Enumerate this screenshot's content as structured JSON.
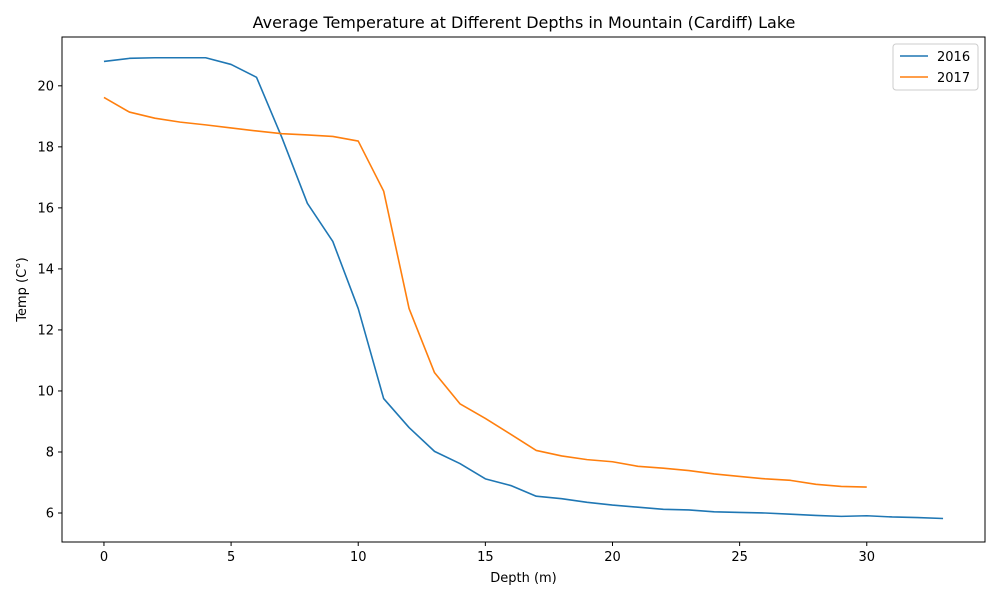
{
  "chart_data": {
    "type": "line",
    "title": "Average Temperature at Different Depths in Mountain (Cardiff) Lake",
    "xlabel": "Depth (m)",
    "ylabel": "Temp (C°)",
    "xlim": [
      -1.65,
      34.65
    ],
    "ylim": [
      5.05,
      21.6
    ],
    "xticks": [
      0,
      5,
      10,
      15,
      20,
      25,
      30
    ],
    "yticks": [
      6,
      8,
      10,
      12,
      14,
      16,
      18,
      20
    ],
    "grid": false,
    "legend_position": "top-right",
    "series": [
      {
        "name": "2016",
        "color": "#1f77b4",
        "x": [
          0,
          1,
          2,
          3,
          4,
          5,
          6,
          7,
          8,
          9,
          10,
          11,
          12,
          13,
          14,
          15,
          16,
          17,
          18,
          19,
          20,
          21,
          22,
          23,
          24,
          25,
          26,
          27,
          28,
          29,
          30,
          31,
          32,
          33
        ],
        "y": [
          20.8,
          20.9,
          20.92,
          20.92,
          20.92,
          20.7,
          20.28,
          18.3,
          16.15,
          14.9,
          12.7,
          9.75,
          8.8,
          8.02,
          7.62,
          7.12,
          6.9,
          6.55,
          6.47,
          6.35,
          6.26,
          6.19,
          6.12,
          6.1,
          6.04,
          6.02,
          6.0,
          5.96,
          5.92,
          5.89,
          5.91,
          5.87,
          5.85,
          5.82
        ]
      },
      {
        "name": "2017",
        "color": "#ff7f0e",
        "x": [
          0,
          1,
          2,
          3,
          4,
          5,
          6,
          7,
          8,
          9,
          10,
          11,
          12,
          13,
          14,
          15,
          16,
          17,
          18,
          19,
          20,
          21,
          22,
          23,
          24,
          25,
          26,
          27,
          28,
          29,
          30
        ],
        "y": [
          19.62,
          19.14,
          18.94,
          18.81,
          18.72,
          18.62,
          18.52,
          18.43,
          18.39,
          18.34,
          18.19,
          16.55,
          12.7,
          10.6,
          9.58,
          9.1,
          8.58,
          8.05,
          7.87,
          7.75,
          7.68,
          7.53,
          7.47,
          7.39,
          7.28,
          7.2,
          7.12,
          7.07,
          6.94,
          6.87,
          6.85
        ]
      }
    ]
  }
}
